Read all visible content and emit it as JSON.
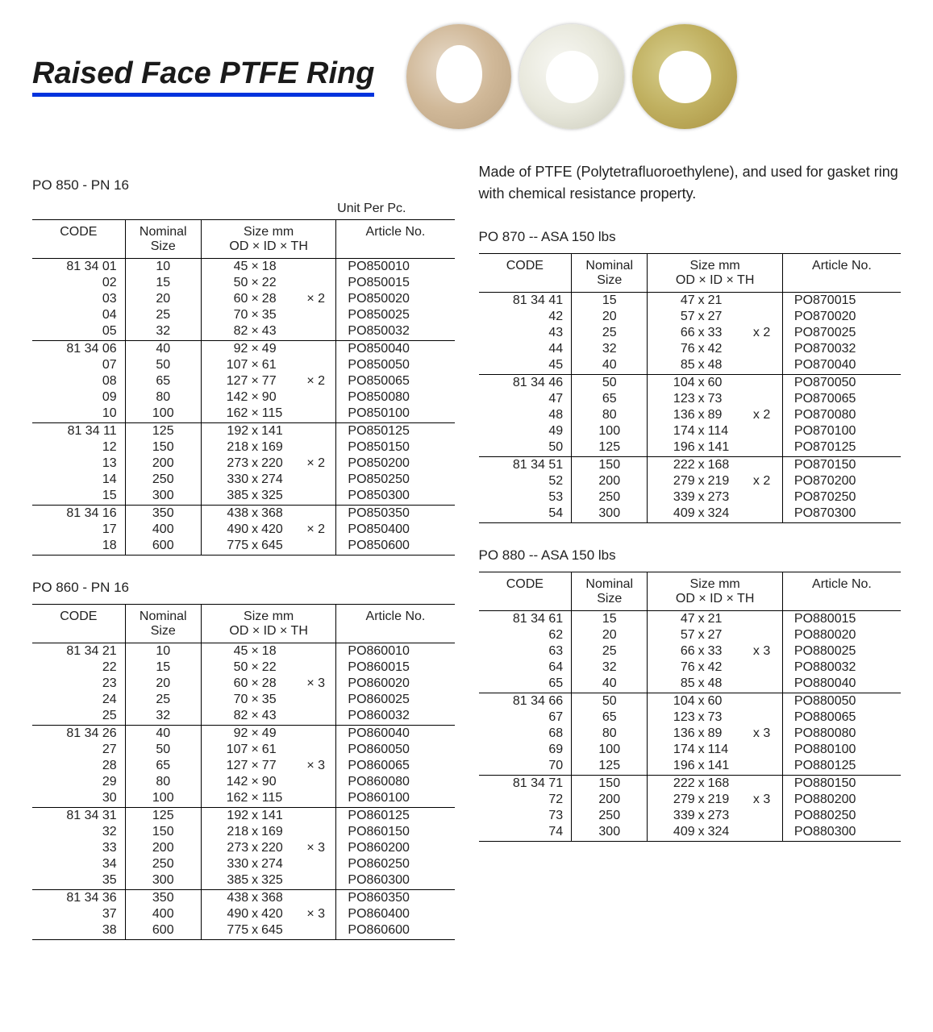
{
  "page_title": "Raised Face PTFE Ring",
  "description": "Made of PTFE (Polytetrafluoroethylene), and used for gasket ring with chemical resistance property.",
  "unit_label": "Unit Per Pc.",
  "headers": {
    "code": "CODE",
    "nominal": "Nominal Size",
    "size": "Size mm OD × ID × TH",
    "article": "Article No."
  },
  "tables": [
    {
      "id": "po850",
      "title": "PO 850 - PN 16",
      "show_unit": true,
      "groups": [
        [
          {
            "code": "81 34 01",
            "nom": "10",
            "od": "45",
            "x1": "×",
            "id": "18",
            "th": "",
            "art": "PO850010"
          },
          {
            "code": "02",
            "nom": "15",
            "od": "50",
            "x1": "×",
            "id": "22",
            "th": "",
            "art": "PO850015"
          },
          {
            "code": "03",
            "nom": "20",
            "od": "60",
            "x1": "×",
            "id": "28",
            "th": "× 2",
            "art": "PO850020"
          },
          {
            "code": "04",
            "nom": "25",
            "od": "70",
            "x1": "×",
            "id": "35",
            "th": "",
            "art": "PO850025"
          },
          {
            "code": "05",
            "nom": "32",
            "od": "82",
            "x1": "×",
            "id": "43",
            "th": "",
            "art": "PO850032"
          }
        ],
        [
          {
            "code": "81 34 06",
            "nom": "40",
            "od": "92",
            "x1": "×",
            "id": "49",
            "th": "",
            "art": "PO850040"
          },
          {
            "code": "07",
            "nom": "50",
            "od": "107",
            "x1": "×",
            "id": "61",
            "th": "",
            "art": "PO850050"
          },
          {
            "code": "08",
            "nom": "65",
            "od": "127",
            "x1": "×",
            "id": "77",
            "th": "× 2",
            "art": "PO850065"
          },
          {
            "code": "09",
            "nom": "80",
            "od": "142",
            "x1": "×",
            "id": "90",
            "th": "",
            "art": "PO850080"
          },
          {
            "code": "10",
            "nom": "100",
            "od": "162",
            "x1": "×",
            "id": "115",
            "th": "",
            "art": "PO850100"
          }
        ],
        [
          {
            "code": "81 34 11",
            "nom": "125",
            "od": "192",
            "x1": "x",
            "id": "141",
            "th": "",
            "art": "PO850125"
          },
          {
            "code": "12",
            "nom": "150",
            "od": "218",
            "x1": "x",
            "id": "169",
            "th": "",
            "art": "PO850150"
          },
          {
            "code": "13",
            "nom": "200",
            "od": "273",
            "x1": "x",
            "id": "220",
            "th": "× 2",
            "art": "PO850200"
          },
          {
            "code": "14",
            "nom": "250",
            "od": "330",
            "x1": "x",
            "id": "274",
            "th": "",
            "art": "PO850250"
          },
          {
            "code": "15",
            "nom": "300",
            "od": "385",
            "x1": "x",
            "id": "325",
            "th": "",
            "art": "PO850300"
          }
        ],
        [
          {
            "code": "81 34 16",
            "nom": "350",
            "od": "438",
            "x1": "x",
            "id": "368",
            "th": "",
            "art": "PO850350"
          },
          {
            "code": "17",
            "nom": "400",
            "od": "490",
            "x1": "x",
            "id": "420",
            "th": "× 2",
            "art": "PO850400"
          },
          {
            "code": "18",
            "nom": "600",
            "od": "775",
            "x1": "x",
            "id": "645",
            "th": "",
            "art": "PO850600"
          }
        ]
      ]
    },
    {
      "id": "po860",
      "title": "PO 860 - PN 16",
      "show_unit": false,
      "groups": [
        [
          {
            "code": "81 34 21",
            "nom": "10",
            "od": "45",
            "x1": "×",
            "id": "18",
            "th": "",
            "art": "PO860010"
          },
          {
            "code": "22",
            "nom": "15",
            "od": "50",
            "x1": "×",
            "id": "22",
            "th": "",
            "art": "PO860015"
          },
          {
            "code": "23",
            "nom": "20",
            "od": "60",
            "x1": "×",
            "id": "28",
            "th": "× 3",
            "art": "PO860020"
          },
          {
            "code": "24",
            "nom": "25",
            "od": "70",
            "x1": "×",
            "id": "35",
            "th": "",
            "art": "PO860025"
          },
          {
            "code": "25",
            "nom": "32",
            "od": "82",
            "x1": "×",
            "id": "43",
            "th": "",
            "art": "PO860032"
          }
        ],
        [
          {
            "code": "81 34 26",
            "nom": "40",
            "od": "92",
            "x1": "×",
            "id": "49",
            "th": "",
            "art": "PO860040"
          },
          {
            "code": "27",
            "nom": "50",
            "od": "107",
            "x1": "×",
            "id": "61",
            "th": "",
            "art": "PO860050"
          },
          {
            "code": "28",
            "nom": "65",
            "od": "127",
            "x1": "×",
            "id": "77",
            "th": "× 3",
            "art": "PO860065"
          },
          {
            "code": "29",
            "nom": "80",
            "od": "142",
            "x1": "×",
            "id": "90",
            "th": "",
            "art": "PO860080"
          },
          {
            "code": "30",
            "nom": "100",
            "od": "162",
            "x1": "×",
            "id": "115",
            "th": "",
            "art": "PO860100"
          }
        ],
        [
          {
            "code": "81 34 31",
            "nom": "125",
            "od": "192",
            "x1": "x",
            "id": "141",
            "th": "",
            "art": "PO860125"
          },
          {
            "code": "32",
            "nom": "150",
            "od": "218",
            "x1": "x",
            "id": "169",
            "th": "",
            "art": "PO860150"
          },
          {
            "code": "33",
            "nom": "200",
            "od": "273",
            "x1": "x",
            "id": "220",
            "th": "× 3",
            "art": "PO860200"
          },
          {
            "code": "34",
            "nom": "250",
            "od": "330",
            "x1": "x",
            "id": "274",
            "th": "",
            "art": "PO860250"
          },
          {
            "code": "35",
            "nom": "300",
            "od": "385",
            "x1": "x",
            "id": "325",
            "th": "",
            "art": "PO860300"
          }
        ],
        [
          {
            "code": "81 34 36",
            "nom": "350",
            "od": "438",
            "x1": "x",
            "id": "368",
            "th": "",
            "art": "PO860350"
          },
          {
            "code": "37",
            "nom": "400",
            "od": "490",
            "x1": "x",
            "id": "420",
            "th": "× 3",
            "art": "PO860400"
          },
          {
            "code": "38",
            "nom": "600",
            "od": "775",
            "x1": "x",
            "id": "645",
            "th": "",
            "art": "PO860600"
          }
        ]
      ]
    },
    {
      "id": "po870",
      "title": "PO 870 -- ASA 150 lbs",
      "show_unit": false,
      "groups": [
        [
          {
            "code": "81 34 41",
            "nom": "15",
            "od": "47",
            "x1": "x",
            "id": "21",
            "th": "",
            "art": "PO870015"
          },
          {
            "code": "42",
            "nom": "20",
            "od": "57",
            "x1": "x",
            "id": "27",
            "th": "",
            "art": "PO870020"
          },
          {
            "code": "43",
            "nom": "25",
            "od": "66",
            "x1": "x",
            "id": "33",
            "th": "x 2",
            "art": "PO870025"
          },
          {
            "code": "44",
            "nom": "32",
            "od": "76",
            "x1": "x",
            "id": "42",
            "th": "",
            "art": "PO870032"
          },
          {
            "code": "45",
            "nom": "40",
            "od": "85",
            "x1": "x",
            "id": "48",
            "th": "",
            "art": "PO870040"
          }
        ],
        [
          {
            "code": "81 34 46",
            "nom": "50",
            "od": "104",
            "x1": "x",
            "id": "60",
            "th": "",
            "art": "PO870050"
          },
          {
            "code": "47",
            "nom": "65",
            "od": "123",
            "x1": "x",
            "id": "73",
            "th": "",
            "art": "PO870065"
          },
          {
            "code": "48",
            "nom": "80",
            "od": "136",
            "x1": "x",
            "id": "89",
            "th": "x 2",
            "art": "PO870080"
          },
          {
            "code": "49",
            "nom": "100",
            "od": "174",
            "x1": "x",
            "id": "114",
            "th": "",
            "art": "PO870100"
          },
          {
            "code": "50",
            "nom": "125",
            "od": "196",
            "x1": "x",
            "id": "141",
            "th": "",
            "art": "PO870125"
          }
        ],
        [
          {
            "code": "81 34 51",
            "nom": "150",
            "od": "222",
            "x1": "x",
            "id": "168",
            "th": "",
            "art": "PO870150"
          },
          {
            "code": "52",
            "nom": "200",
            "od": "279",
            "x1": "x",
            "id": "219",
            "th": "x 2",
            "art": "PO870200"
          },
          {
            "code": "53",
            "nom": "250",
            "od": "339",
            "x1": "x",
            "id": "273",
            "th": "",
            "art": "PO870250"
          },
          {
            "code": "54",
            "nom": "300",
            "od": "409",
            "x1": "x",
            "id": "324",
            "th": "",
            "art": "PO870300"
          }
        ]
      ]
    },
    {
      "id": "po880",
      "title": "PO 880 -- ASA 150 lbs",
      "show_unit": false,
      "groups": [
        [
          {
            "code": "81 34 61",
            "nom": "15",
            "od": "47",
            "x1": "x",
            "id": "21",
            "th": "",
            "art": "PO880015"
          },
          {
            "code": "62",
            "nom": "20",
            "od": "57",
            "x1": "x",
            "id": "27",
            "th": "",
            "art": "PO880020"
          },
          {
            "code": "63",
            "nom": "25",
            "od": "66",
            "x1": "x",
            "id": "33",
            "th": "x 3",
            "art": "PO880025"
          },
          {
            "code": "64",
            "nom": "32",
            "od": "76",
            "x1": "x",
            "id": "42",
            "th": "",
            "art": "PO880032"
          },
          {
            "code": "65",
            "nom": "40",
            "od": "85",
            "x1": "x",
            "id": "48",
            "th": "",
            "art": "PO880040"
          }
        ],
        [
          {
            "code": "81 34 66",
            "nom": "50",
            "od": "104",
            "x1": "x",
            "id": "60",
            "th": "",
            "art": "PO880050"
          },
          {
            "code": "67",
            "nom": "65",
            "od": "123",
            "x1": "x",
            "id": "73",
            "th": "",
            "art": "PO880065"
          },
          {
            "code": "68",
            "nom": "80",
            "od": "136",
            "x1": "x",
            "id": "89",
            "th": "x 3",
            "art": "PO880080"
          },
          {
            "code": "69",
            "nom": "100",
            "od": "174",
            "x1": "x",
            "id": "114",
            "th": "",
            "art": "PO880100"
          },
          {
            "code": "70",
            "nom": "125",
            "od": "196",
            "x1": "x",
            "id": "141",
            "th": "",
            "art": "PO880125"
          }
        ],
        [
          {
            "code": "81 34 71",
            "nom": "150",
            "od": "222",
            "x1": "x",
            "id": "168",
            "th": "",
            "art": "PO880150"
          },
          {
            "code": "72",
            "nom": "200",
            "od": "279",
            "x1": "x",
            "id": "219",
            "th": "x 3",
            "art": "PO880200"
          },
          {
            "code": "73",
            "nom": "250",
            "od": "339",
            "x1": "x",
            "id": "273",
            "th": "",
            "art": "PO880250"
          },
          {
            "code": "74",
            "nom": "300",
            "od": "409",
            "x1": "x",
            "id": "324",
            "th": "",
            "art": "PO880300"
          }
        ]
      ]
    }
  ]
}
